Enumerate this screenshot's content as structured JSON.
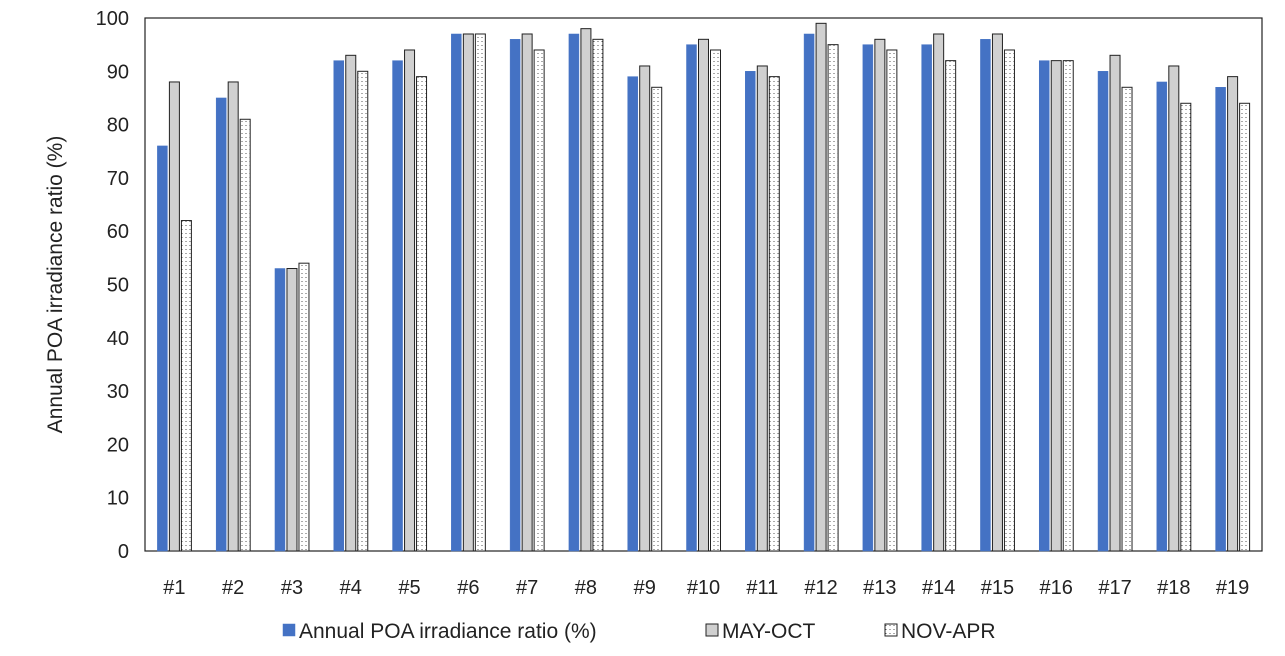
{
  "chart_data": {
    "type": "bar",
    "title": "",
    "xlabel": "",
    "ylabel": "Annual POA irradiance ratio (%)",
    "ylim": [
      0,
      100
    ],
    "yticks": [
      0,
      10,
      20,
      30,
      40,
      50,
      60,
      70,
      80,
      90,
      100
    ],
    "grid": false,
    "legend_position": "bottom",
    "categories": [
      "#1",
      "#2",
      "#3",
      "#4",
      "#5",
      "#6",
      "#7",
      "#8",
      "#9",
      "#10",
      "#11",
      "#12",
      "#13",
      "#14",
      "#15",
      "#16",
      "#17",
      "#18",
      "#19"
    ],
    "series": [
      {
        "name": "Annual POA irradiance ratio (%)",
        "style": "solid",
        "color": "#4472C4",
        "values": [
          76,
          85,
          53,
          92,
          92,
          97,
          96,
          97,
          89,
          95,
          90,
          97,
          95,
          95,
          96,
          92,
          90,
          88,
          87
        ]
      },
      {
        "name": "MAY-OCT",
        "style": "gray-outline",
        "color": "#D0D0D0",
        "values": [
          88,
          88,
          53,
          93,
          94,
          97,
          97,
          98,
          91,
          96,
          91,
          99,
          96,
          97,
          97,
          92,
          93,
          91,
          89
        ]
      },
      {
        "name": "NOV-APR",
        "style": "dotted",
        "color": "#FFFFFF",
        "values": [
          62,
          81,
          54,
          90,
          89,
          97,
          94,
          96,
          87,
          94,
          89,
          95,
          94,
          92,
          94,
          92,
          87,
          84,
          84
        ]
      }
    ]
  }
}
